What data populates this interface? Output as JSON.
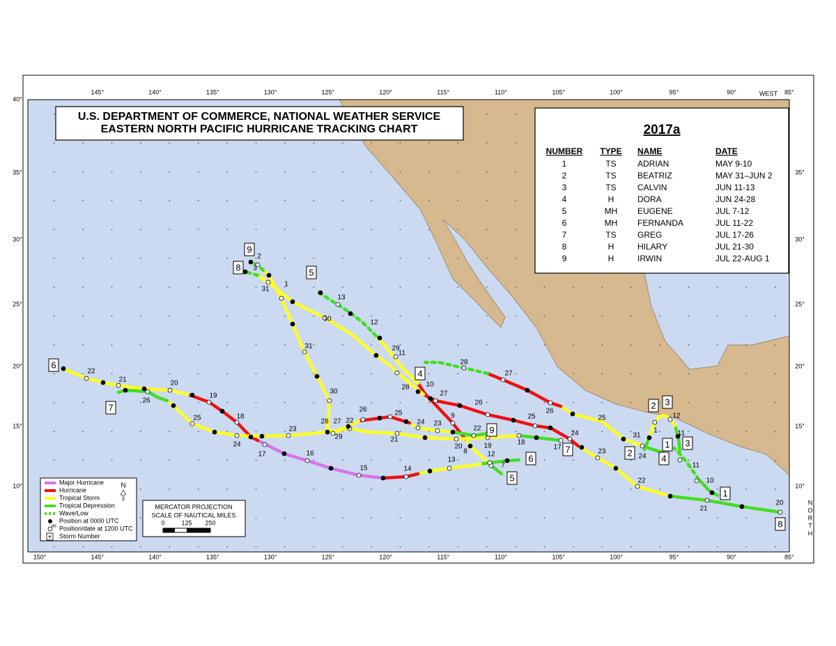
{
  "header": {
    "title_line1": "U.S. DEPARTMENT OF COMMERCE, NATIONAL WEATHER SERVICE",
    "title_line2": "EASTERN NORTH PACIFIC HURRICANE TRACKING CHART"
  },
  "table": {
    "title": "2017a",
    "columns": [
      "NUMBER",
      "TYPE",
      "NAME",
      "DATE"
    ],
    "rows": [
      [
        "1",
        "TS",
        "ADRIAN",
        "MAY 9-10"
      ],
      [
        "2",
        "TS",
        "BEATRIZ",
        "MAY 31–JUN 2"
      ],
      [
        "3",
        "TS",
        "CALVIN",
        "JUN 11-13"
      ],
      [
        "4",
        "H",
        "DORA",
        "JUN 24-28"
      ],
      [
        "5",
        "MH",
        "EUGENE",
        "JUL 7-12"
      ],
      [
        "6",
        "MH",
        "FERNANDA",
        "JUL 11-22"
      ],
      [
        "7",
        "TS",
        "GREG",
        "JUL 17-26"
      ],
      [
        "8",
        "H",
        "HILARY",
        "JUL 21-30"
      ],
      [
        "9",
        "H",
        "IRWIN",
        "JUL 22-AUG 1"
      ]
    ]
  },
  "legend": {
    "items": [
      {
        "label": "Major Hurricane",
        "color": "#d873ea"
      },
      {
        "label": "Hurricane",
        "color": "#ee1111"
      },
      {
        "label": "Tropical Storm",
        "color": "#ffff22"
      },
      {
        "label": "Tropical Depression",
        "color": "#44dd22"
      },
      {
        "label": "Wave/Low",
        "color": "#44dd22"
      }
    ],
    "position_0000": "Position at 0000 UTC",
    "position_1200": "Position/date at 1200 UTC",
    "dd": "dd",
    "storm_number": "Storm Number",
    "storm_number_symbol": "#",
    "compass": "N"
  },
  "scale_box": {
    "projection": "MERCATOR PROJECTION",
    "scale": "SCALE OF NAUTICAL MILES",
    "ticks": [
      "0",
      "125",
      "250"
    ]
  },
  "axes": {
    "top": [
      "145°",
      "140°",
      "135°",
      "130°",
      "125°",
      "120°",
      "115°",
      "110°",
      "105°",
      "100°",
      "95°",
      "90°",
      "85°"
    ],
    "west": "WEST",
    "bottom": [
      "150°",
      "145°",
      "140°",
      "135°",
      "130°",
      "125°",
      "120°",
      "115°",
      "110°",
      "105°",
      "100°",
      "95°",
      "90°",
      "85°"
    ],
    "left": [
      "40°",
      "35°",
      "30°",
      "25°",
      "20°",
      "15°",
      "10°"
    ],
    "right": [
      "35°",
      "30°",
      "25°",
      "20°",
      "15°",
      "10°"
    ],
    "north": "NORTH"
  },
  "storms": [
    {
      "number": "1",
      "labels": [
        "10",
        "11"
      ]
    },
    {
      "number": "2",
      "labels": [
        "31",
        "1"
      ]
    },
    {
      "number": "3",
      "labels": [
        "11",
        "12"
      ]
    },
    {
      "number": "4",
      "labels": [
        "24",
        "25",
        "26",
        "27",
        "28"
      ]
    },
    {
      "number": "5",
      "labels": [
        "7",
        "8",
        "9",
        "10",
        "11",
        "12",
        "13"
      ]
    },
    {
      "number": "6",
      "labels": [
        "12",
        "13",
        "14",
        "15",
        "16",
        "17",
        "18",
        "19",
        "20",
        "21",
        "22"
      ]
    },
    {
      "number": "7",
      "labels": [
        "17",
        "18",
        "19",
        "20",
        "21",
        "22",
        "23",
        "24",
        "25",
        "26"
      ]
    },
    {
      "number": "8",
      "labels": [
        "20",
        "21",
        "22",
        "23",
        "24",
        "25",
        "26",
        "27",
        "28",
        "29",
        "30",
        "31",
        "3"
      ]
    },
    {
      "number": "9",
      "labels": [
        "22",
        "23",
        "24",
        "25",
        "26",
        "27",
        "28",
        "29",
        "30",
        "31",
        "1",
        "2"
      ]
    }
  ]
}
